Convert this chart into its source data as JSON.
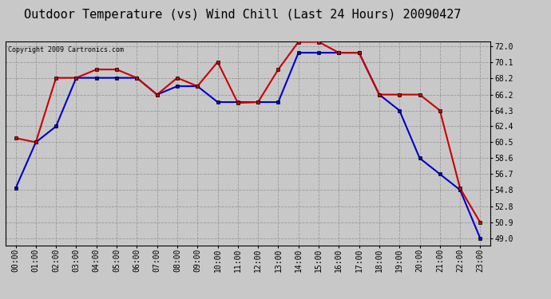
{
  "title": "Outdoor Temperature (vs) Wind Chill (Last 24 Hours) 20090427",
  "copyright": "Copyright 2009 Cartronics.com",
  "hours": [
    "00:00",
    "01:00",
    "02:00",
    "03:00",
    "04:00",
    "05:00",
    "06:00",
    "07:00",
    "08:00",
    "09:00",
    "10:00",
    "11:00",
    "12:00",
    "13:00",
    "14:00",
    "15:00",
    "16:00",
    "17:00",
    "18:00",
    "19:00",
    "20:00",
    "21:00",
    "22:00",
    "23:00"
  ],
  "temp": [
    61.0,
    60.5,
    68.2,
    68.2,
    69.2,
    69.2,
    68.2,
    66.2,
    68.2,
    67.2,
    70.1,
    65.2,
    65.3,
    69.2,
    72.5,
    72.5,
    71.2,
    71.2,
    66.2,
    66.2,
    66.2,
    64.3,
    55.0,
    50.9
  ],
  "windchill": [
    55.0,
    60.5,
    62.4,
    68.2,
    68.2,
    68.2,
    68.2,
    66.2,
    67.2,
    67.2,
    65.3,
    65.3,
    65.3,
    65.3,
    71.2,
    71.2,
    71.2,
    71.2,
    66.2,
    64.3,
    58.6,
    56.7,
    54.8,
    49.0
  ],
  "temp_color": "#cc0000",
  "windchill_color": "#0000cc",
  "bg_color": "#c8c8c8",
  "plot_bg_color": "#c8c8c8",
  "grid_color": "#999999",
  "ylim_min": 49.0,
  "ylim_max": 72.0,
  "yticks": [
    49.0,
    50.9,
    52.8,
    54.8,
    56.7,
    58.6,
    60.5,
    62.4,
    64.3,
    66.2,
    68.2,
    70.1,
    72.0
  ],
  "title_fontsize": 11,
  "copyright_fontsize": 6,
  "tick_fontsize": 7,
  "marker_size": 3
}
